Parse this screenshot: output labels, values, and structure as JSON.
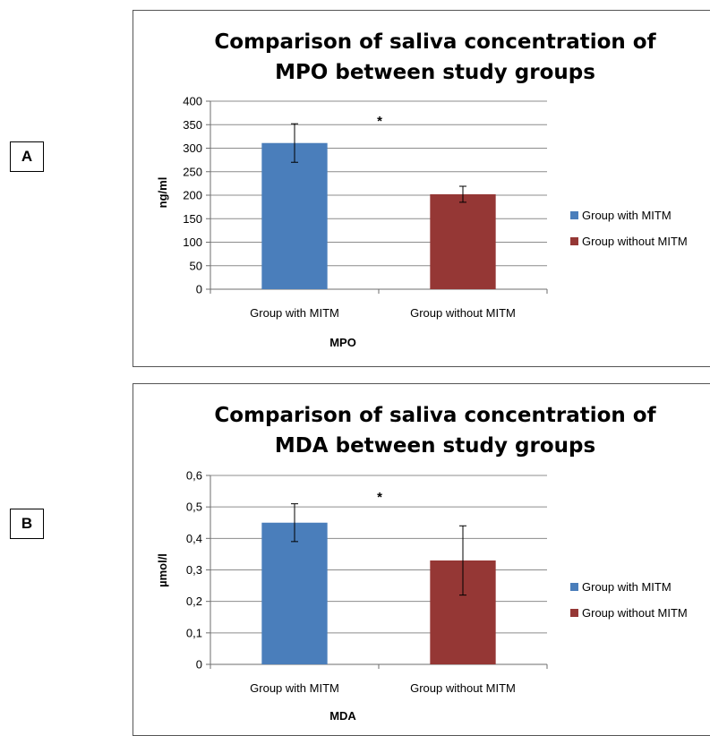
{
  "panels": [
    {
      "label": "A"
    },
    {
      "label": "B"
    }
  ],
  "colors": {
    "series1": "#4a7ebb",
    "series2": "#953735",
    "grid": "#8c8c8c",
    "axis": "#6e6e6e"
  },
  "chart_data": [
    {
      "type": "bar",
      "title_lines": [
        "Comparison of saliva concentration of",
        "MPO between study groups"
      ],
      "categories": [
        "Group with MITM",
        "Group without MITM"
      ],
      "values": [
        311,
        202
      ],
      "errors": [
        41,
        17
      ],
      "ytick_labels": [
        "0",
        "50",
        "100",
        "150",
        "200",
        "250",
        "300",
        "350",
        "400"
      ],
      "ylim": [
        0,
        400
      ],
      "ystep": 50,
      "xlabel": "MPO",
      "ylabel": "ng/ml",
      "annotation": "*",
      "legend": [
        "Group with MITM",
        "Group without MITM"
      ],
      "legend_position": "right",
      "grid": true
    },
    {
      "type": "bar",
      "title_lines": [
        "Comparison of saliva concentration of",
        "MDA between study groups"
      ],
      "categories": [
        "Group with MITM",
        "Group without MITM"
      ],
      "values": [
        0.45,
        0.33
      ],
      "errors": [
        0.06,
        0.11
      ],
      "ytick_labels": [
        "0",
        "0,1",
        "0,2",
        "0,3",
        "0,4",
        "0,5",
        "0,6"
      ],
      "ylim": [
        0,
        0.6
      ],
      "ystep": 0.1,
      "xlabel": "MDA",
      "ylabel": "µmol/l",
      "annotation": "*",
      "legend": [
        "Group with MITM",
        "Group without MITM"
      ],
      "legend_position": "right",
      "grid": true
    }
  ]
}
